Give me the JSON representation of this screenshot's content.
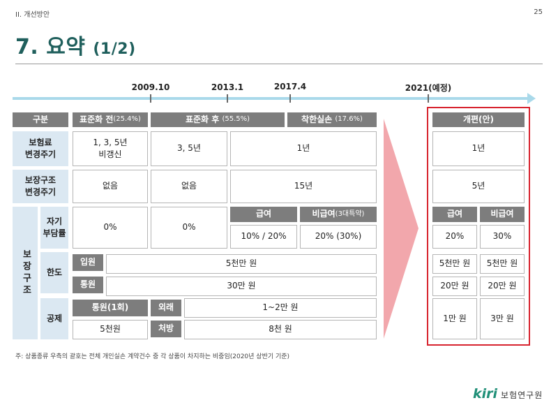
{
  "header": {
    "section": "II. 개선방안",
    "page_number": "25"
  },
  "title": {
    "main": "7. 요약",
    "sub": "(1/2)"
  },
  "timeline": {
    "years": [
      "2009.10",
      "2013.1",
      "2017.4",
      "2021(예정)"
    ]
  },
  "table": {
    "col_headers": {
      "category": "구분",
      "before": "표준화 전",
      "before_pct": "(25.4%)",
      "after": "표준화 후",
      "after_pct": "(55.5%)",
      "good": "착한실손",
      "good_pct": "(17.6%)"
    },
    "premium_row": {
      "label": "보험료\n변경주기",
      "before": "1, 3, 5년\n비갱신",
      "after": "3, 5년",
      "good": "1년"
    },
    "structure_row": {
      "label": "보장구조\n변경주기",
      "before": "없음",
      "after": "없음",
      "good": "15년"
    },
    "coverage": {
      "group_label": "보장구조",
      "self_pay": {
        "label": "자기\n부담률",
        "before": "0%",
        "after": "0%",
        "benefit_header": "급여",
        "nonbenefit_header": "비급여",
        "nonbenefit_header_note": "(3대특약)",
        "benefit": "10% / 20%",
        "nonbenefit": "20% (30%)"
      },
      "limit": {
        "label": "한도",
        "inpatient_label": "입원",
        "inpatient_value": "5천만 원",
        "outpatient_label": "통원",
        "outpatient_value": "30만 원"
      },
      "deductible": {
        "label": "공제",
        "outpatient_label": "통원(1회)",
        "outpatient_value": "5천원",
        "external_label": "외래",
        "external_value": "1~2만 원",
        "rx_label": "처방",
        "rx_value": "8천 원"
      }
    }
  },
  "reform": {
    "header": "개편(안)",
    "premium_cycle": "1년",
    "structure_cycle": "5년",
    "benefit_header": "급여",
    "nonbenefit_header": "비급여",
    "self_pay_benefit": "20%",
    "self_pay_nonbenefit": "30%",
    "limit_inpatient_benefit": "5천만 원",
    "limit_inpatient_nonbenefit": "5천만 원",
    "limit_outpatient_benefit": "20만 원",
    "limit_outpatient_nonbenefit": "20만 원",
    "deductible_benefit": "1만 원",
    "deductible_nonbenefit": "3만 원"
  },
  "footnote": "주: 상품종류 우측의 괄호는 전체 개인실손 계약건수 중 각 상품이 차지하는 비중임(2020년 상반기 기준)",
  "logo": {
    "mark": "kiri",
    "text": "보험연구원"
  },
  "colors": {
    "title": "#1f5f5c",
    "header_gray": "#7d7d7d",
    "side_blue": "#dbe8f2",
    "accent_red": "#d7232e",
    "arrow_pink": "#f2a7ac",
    "timeline": "#a9d9ea"
  }
}
